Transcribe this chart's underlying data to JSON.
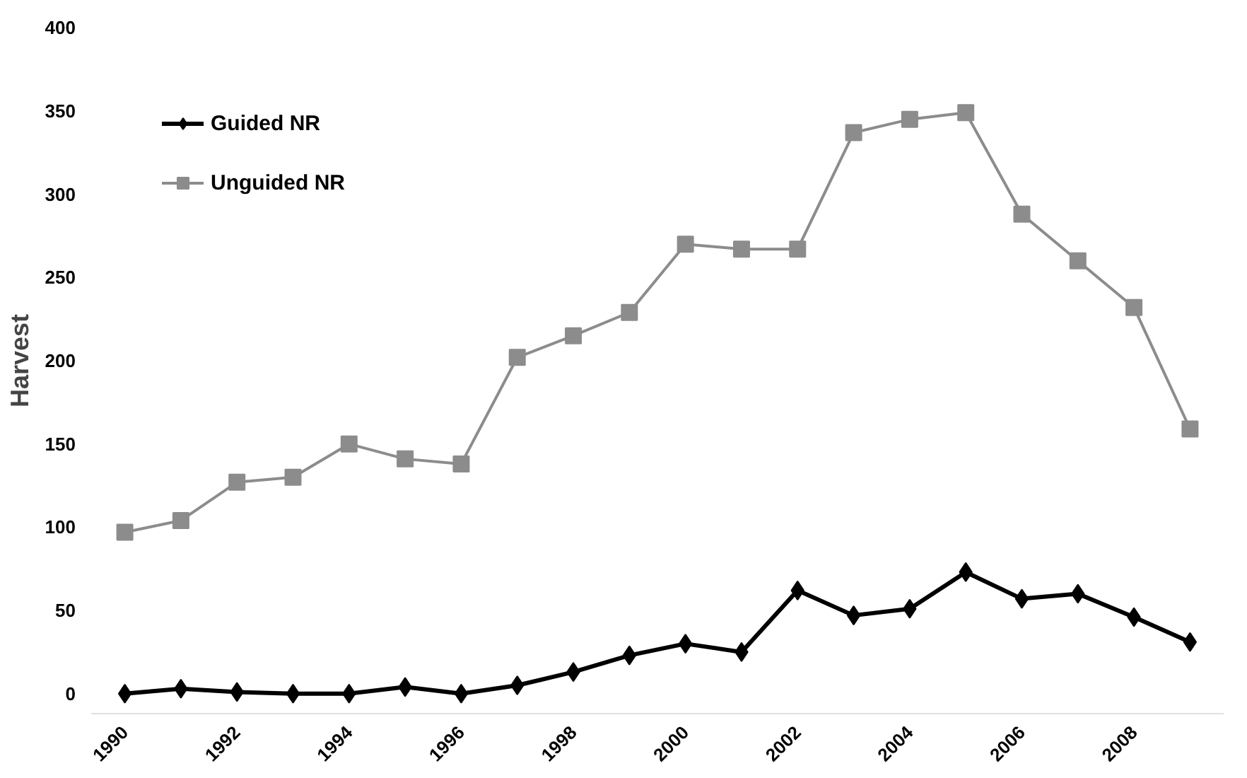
{
  "chart_data": {
    "type": "line",
    "ylabel": "Harvest",
    "x": [
      1990,
      1991,
      1992,
      1993,
      1994,
      1995,
      1996,
      1997,
      1998,
      1999,
      2000,
      2001,
      2002,
      2003,
      2004,
      2005,
      2006,
      2007,
      2008,
      2009
    ],
    "series": [
      {
        "name": "Guided NR",
        "color": "#000000",
        "marker": "diamond",
        "values": [
          0,
          3,
          1,
          0,
          0,
          4,
          0,
          5,
          13,
          23,
          30,
          25,
          62,
          47,
          51,
          73,
          57,
          60,
          46,
          31
        ]
      },
      {
        "name": "Unguided NR",
        "color": "#8c8c8c",
        "marker": "square",
        "values": [
          97,
          104,
          127,
          130,
          150,
          141,
          138,
          202,
          215,
          229,
          270,
          267,
          267,
          337,
          345,
          349,
          288,
          260,
          232,
          159
        ]
      }
    ],
    "xlim": [
      1989.4,
      2009.6
    ],
    "xticks": [
      1990,
      1992,
      1994,
      1996,
      1998,
      2000,
      2002,
      2004,
      2006,
      2008
    ],
    "ylim": [
      0,
      400
    ],
    "yticks": [
      0,
      50,
      100,
      150,
      200,
      250,
      300,
      350,
      400
    ],
    "grid": false,
    "legend": "top left"
  }
}
